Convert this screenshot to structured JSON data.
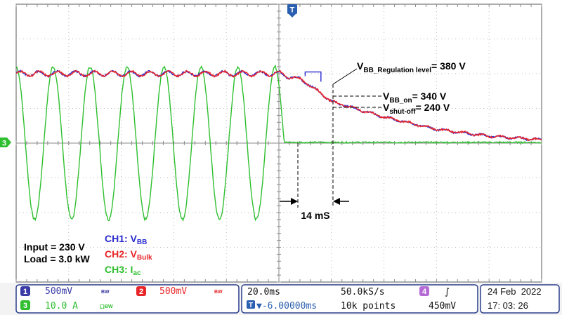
{
  "chart_data": {
    "type": "line",
    "title": "",
    "time_scale": "20.0ms",
    "sample_rate": "50.0kS/s",
    "record_length": "10k points",
    "trigger_position": "-6.00000ms",
    "trigger_marker": "T",
    "x_divisions": 10,
    "y_divisions": 8,
    "series": [
      {
        "name": "CH1: V",
        "subscript": "BB",
        "color": "#2b2bcf",
        "role": "blue"
      },
      {
        "name": "CH2: V",
        "subscript": "Bulk",
        "color": "#e8262a",
        "role": "red"
      },
      {
        "name": "CH3: I",
        "subscript": "ac",
        "color": "#2fbf2f",
        "role": "green"
      }
    ],
    "bus_voltage_trace": {
      "x_div": [
        0,
        5.0,
        5.4,
        5.7,
        6.0,
        7.0,
        8.0,
        9.0,
        10.0
      ],
      "y_div": [
        2.0,
        2.0,
        1.85,
        1.55,
        1.2,
        0.75,
        0.4,
        0.2,
        0.1
      ],
      "ripple_amplitude_div": 0.07
    },
    "ac_current_trace": {
      "cycles_before_cutoff": 7,
      "amplitude_div": 2.2,
      "cutoff_x_div": 5.1,
      "steady_offset_div": 0.02
    },
    "regulation_step": {
      "x_div": [
        5.5,
        5.8
      ],
      "y_div": 2.05
    },
    "annotations": {
      "regulation_prefix": "V",
      "regulation_sub": "BB_Regulation level",
      "regulation_value": "= 380 V",
      "on_prefix": "V",
      "on_sub": "BB_on",
      "on_value": "= 340 V",
      "shutoff_prefix": "V",
      "shutoff_sub": "shut-off",
      "shutoff_value": "= 240 V",
      "interval": "14 mS",
      "input": "Input = 230 V",
      "load": "Load = 3.0 kW"
    }
  },
  "channel_marker": "3",
  "status_bar": {
    "ch1_num": "1",
    "ch1_scale": "500mV",
    "ch1_bw": "BW",
    "ch2_num": "2",
    "ch2_scale": "500mV",
    "ch2_bw": "BW",
    "ch3_num": "3",
    "ch3_scale": "10.0 A",
    "ch3_unit": "Ω",
    "ch3_bw": "BW",
    "horizontal": "20.0ms",
    "sample_rate": "50.0kS/s",
    "trigger_icon": "T",
    "trigger_offset": "▼-6.00000ms",
    "record_length": "10k points",
    "trig_ch_num": "4",
    "trig_slope": "∫",
    "trig_level": "450mV",
    "date": "24 Feb  2022",
    "time": "17: 03: 26"
  },
  "colors": {
    "grid": "#b9b9b9",
    "ch1": "#2b2bcf",
    "ch2": "#e8262a",
    "ch3": "#2fbf2f",
    "status_bg": "#f3f3f3",
    "panel_border": "#2a3e8c"
  }
}
